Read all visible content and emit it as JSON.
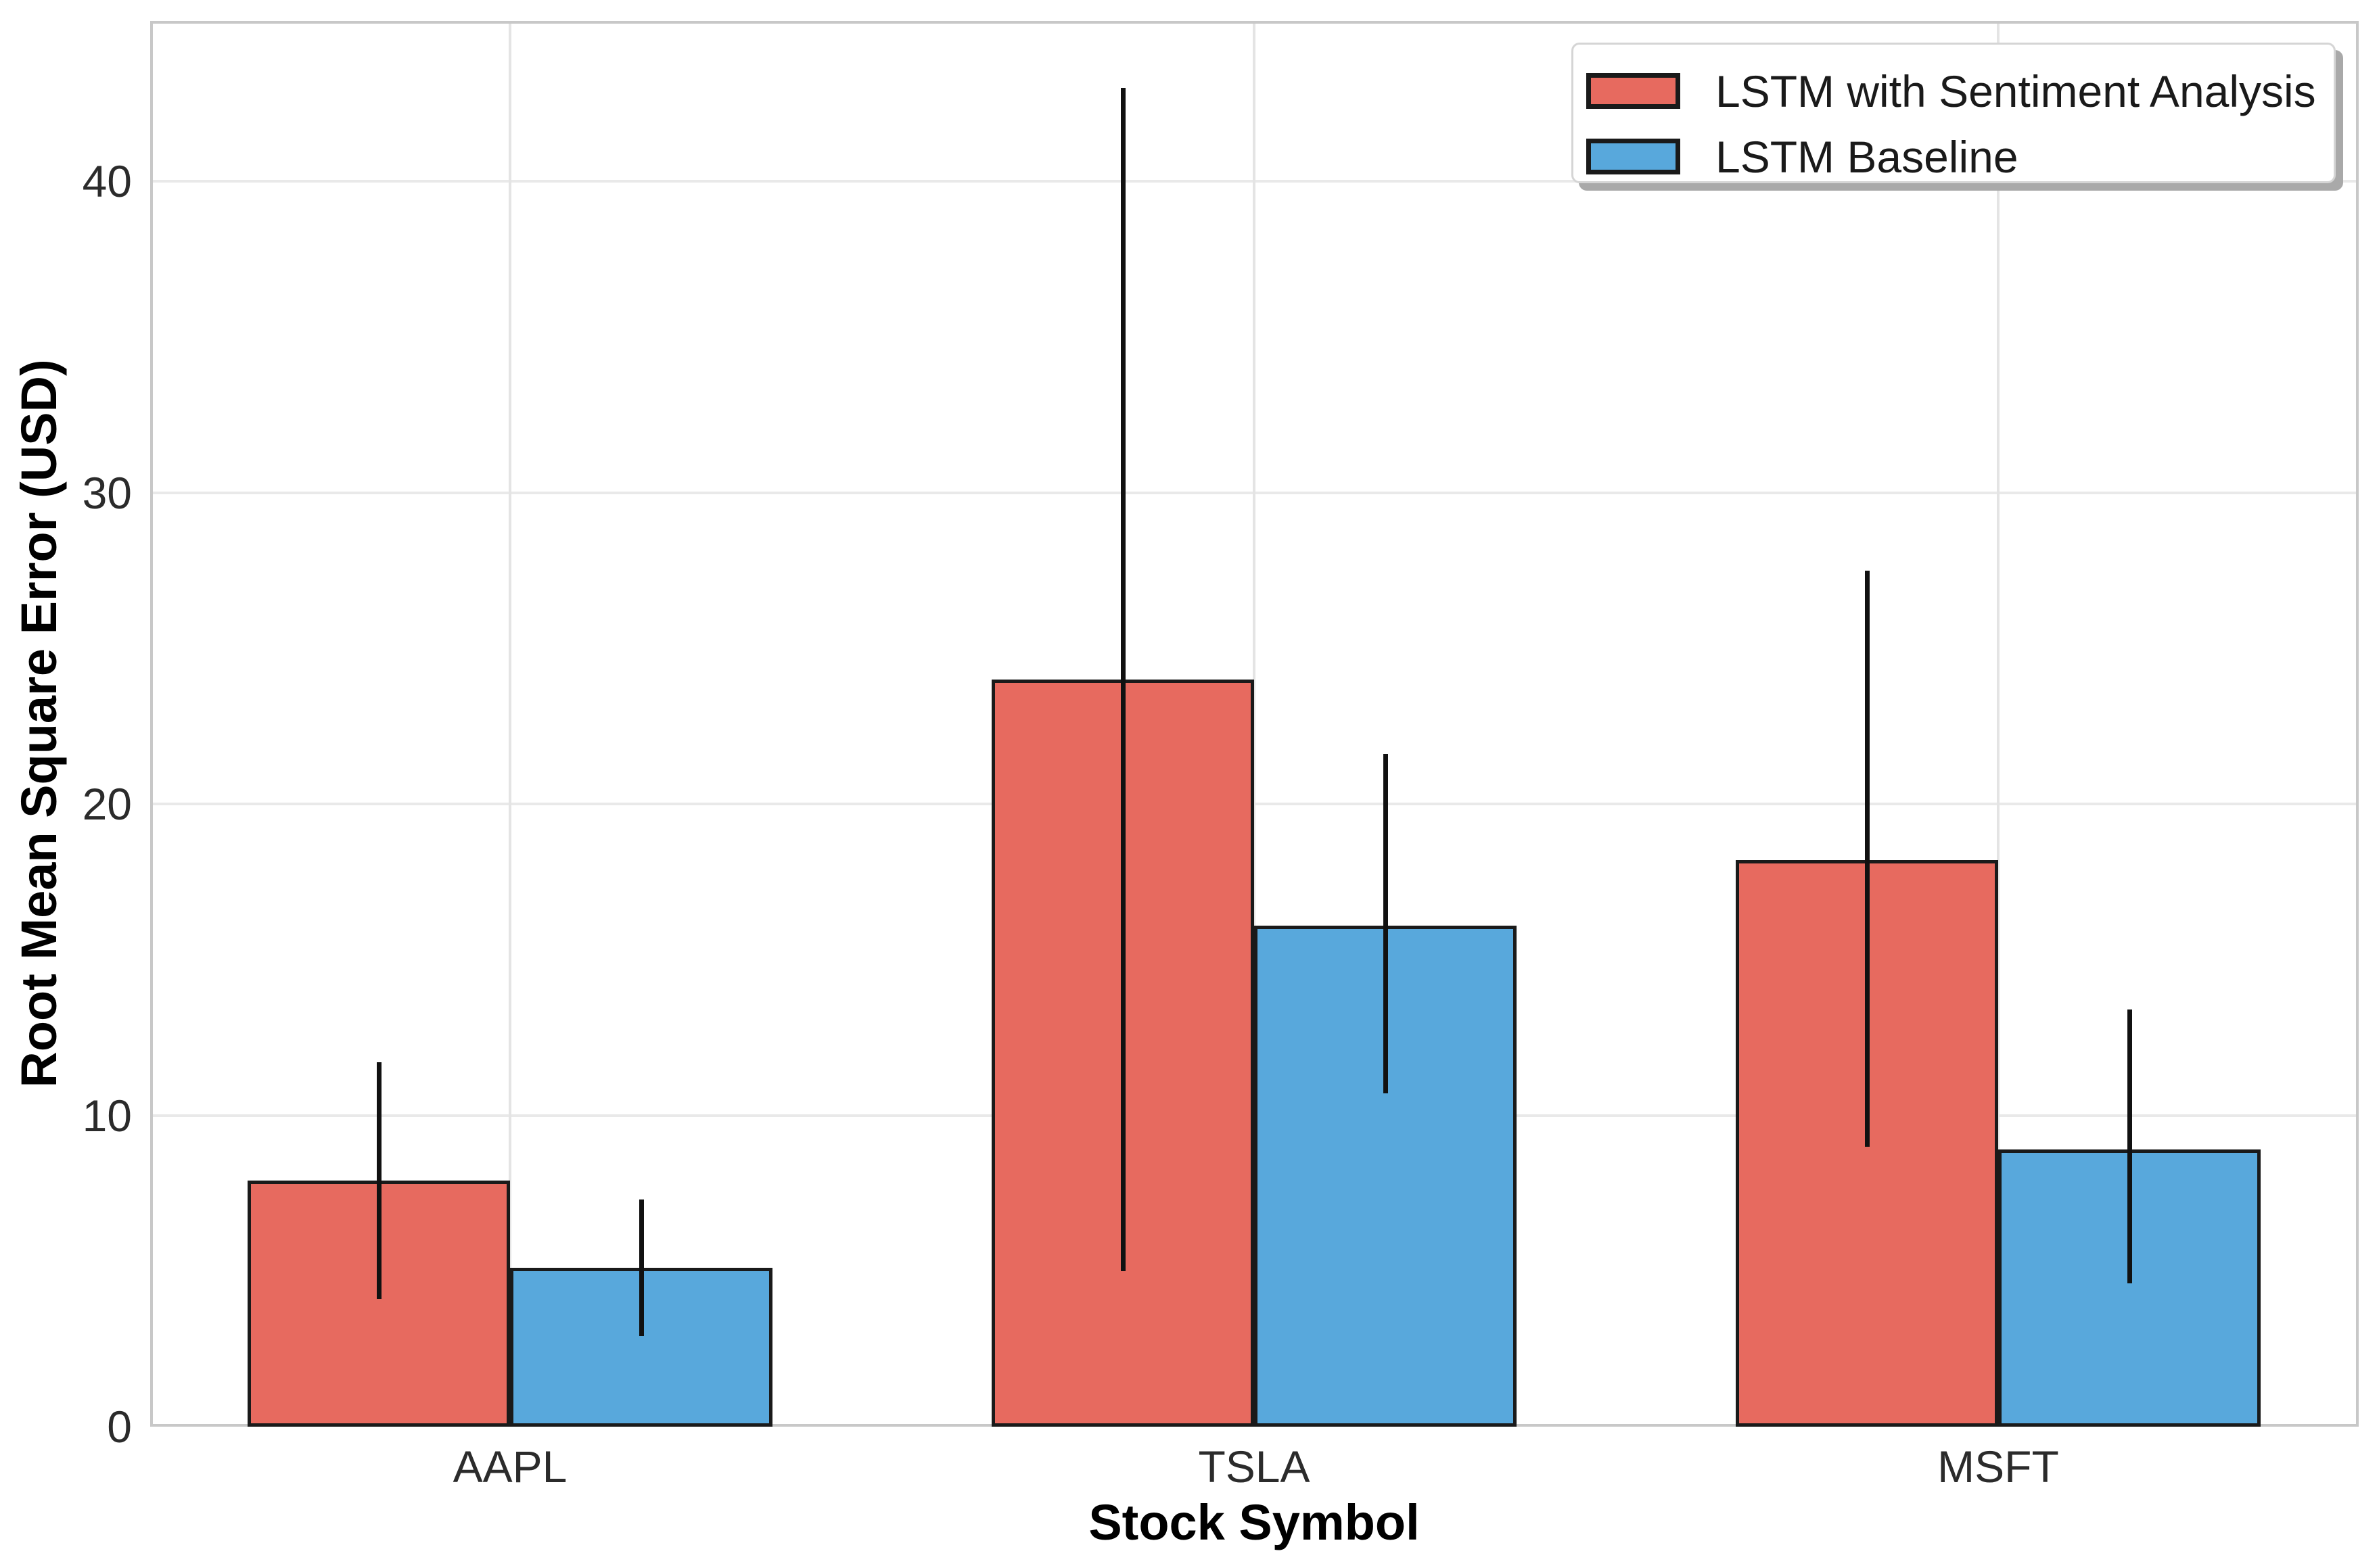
{
  "chart_data": {
    "type": "bar",
    "title": "",
    "xlabel": "Stock Symbol",
    "ylabel": "Root Mean Square Error (USD)",
    "categories": [
      "AAPL",
      "TSLA",
      "MSFT"
    ],
    "series": [
      {
        "name": "LSTM with Sentiment Analysis",
        "color": "#E76A5F",
        "values": [
          7.9,
          24.0,
          18.2
        ],
        "error_low": [
          4.1,
          5.0,
          9.0
        ],
        "error_high": [
          11.7,
          43.0,
          27.5
        ]
      },
      {
        "name": "LSTM Baseline",
        "color": "#58A8DC",
        "values": [
          5.1,
          16.1,
          8.9
        ],
        "error_low": [
          2.9,
          10.7,
          4.6
        ],
        "error_high": [
          7.3,
          21.6,
          13.4
        ]
      }
    ],
    "ylim": [
      0,
      45.15
    ],
    "yticks": [
      "0",
      "10",
      "20",
      "30",
      "40"
    ],
    "ytick_values": [
      0,
      10,
      20,
      30,
      40
    ],
    "grid": true,
    "error_bars": true,
    "legend_position": "upper right",
    "bar_edge_color": "#1a1a1a",
    "error_bar_color": "#111111",
    "grid_color": "#e9e9e9",
    "frame_color": "#c8c8c8"
  }
}
